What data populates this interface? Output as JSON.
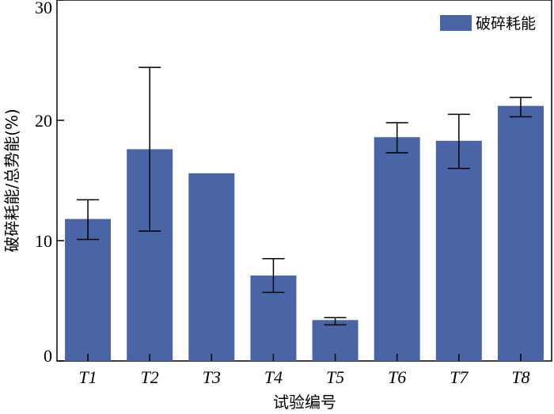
{
  "chart_data": {
    "type": "bar",
    "categories": [
      "T1",
      "T2",
      "T3",
      "T4",
      "T5",
      "T6",
      "T7",
      "T8"
    ],
    "series": [
      {
        "name": "破碎耗能",
        "values": [
          11.8,
          17.6,
          15.6,
          7.1,
          3.4,
          18.6,
          18.3,
          21.2
        ],
        "error_low": [
          10.1,
          10.8,
          15.6,
          5.7,
          3.0,
          17.3,
          16.0,
          20.3
        ],
        "error_high": [
          13.4,
          24.4,
          15.6,
          8.5,
          3.6,
          19.8,
          20.5,
          21.9
        ],
        "color": "#4a65a6"
      }
    ],
    "xlabel": "试验编号",
    "ylabel": "破碎耗能/总势能(%)",
    "ylim": [
      0,
      30
    ],
    "yticks": [
      "0",
      "10",
      "20",
      "30"
    ],
    "legend": "top-right",
    "grid": false
  }
}
